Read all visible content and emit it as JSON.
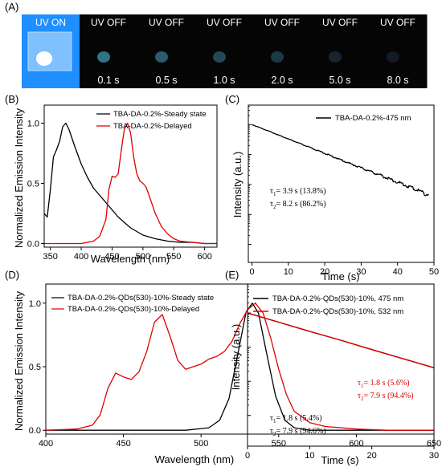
{
  "panel_a": {
    "label": "(A)",
    "frames": [
      {
        "state": "UV ON",
        "time": "",
        "glow": 1.0
      },
      {
        "state": "UV OFF",
        "time": "0.1 s",
        "glow": 0.62
      },
      {
        "state": "UV OFF",
        "time": "0.5 s",
        "glow": 0.48
      },
      {
        "state": "UV OFF",
        "time": "1.0 s",
        "glow": 0.36
      },
      {
        "state": "UV OFF",
        "time": "2.0 s",
        "glow": 0.26
      },
      {
        "state": "UV OFF",
        "time": "5.0 s",
        "glow": 0.14
      },
      {
        "state": "UV OFF",
        "time": "8.0 s",
        "glow": 0.07
      }
    ]
  },
  "chart_data": [
    {
      "panel": "(B)",
      "type": "line",
      "xlabel": "Wavelength (nm)",
      "ylabel": "Normalized Emission Intensity",
      "xlim": [
        340,
        620
      ],
      "ylim": [
        -0.03,
        1.15
      ],
      "xticks": [
        350,
        400,
        450,
        500,
        550,
        600
      ],
      "yticks": [
        0.0,
        0.5,
        1.0
      ],
      "legend_position": "top-right",
      "series": [
        {
          "name": "TBA-DA-0.2%-Steady state",
          "color": "#000000",
          "x": [
            340,
            345,
            350,
            355,
            360,
            365,
            370,
            375,
            380,
            390,
            400,
            410,
            420,
            440,
            460,
            480,
            500,
            520,
            540,
            560,
            580,
            600,
            620
          ],
          "y": [
            0.25,
            0.22,
            0.45,
            0.72,
            0.78,
            0.85,
            0.97,
            1.0,
            0.95,
            0.8,
            0.66,
            0.55,
            0.46,
            0.34,
            0.22,
            0.13,
            0.07,
            0.04,
            0.02,
            0.01,
            0.01,
            0.0,
            0.0
          ]
        },
        {
          "name": "TBA-DA-0.2%-Delayed",
          "color": "#e00000",
          "x": [
            340,
            400,
            420,
            430,
            440,
            445,
            450,
            455,
            460,
            465,
            470,
            475,
            480,
            485,
            490,
            495,
            500,
            505,
            510,
            520,
            530,
            540,
            550,
            560,
            580,
            600,
            620
          ],
          "y": [
            0.0,
            0.0,
            0.02,
            0.06,
            0.2,
            0.45,
            0.56,
            0.55,
            0.58,
            0.78,
            0.95,
            1.0,
            0.92,
            0.72,
            0.58,
            0.52,
            0.5,
            0.47,
            0.4,
            0.25,
            0.14,
            0.08,
            0.04,
            0.02,
            0.01,
            0.0,
            0.0
          ]
        }
      ]
    },
    {
      "panel": "(C)",
      "type": "line",
      "xlabel": "Time (s)",
      "ylabel": "Intensity (a.u.)",
      "xlim": [
        -1,
        50
      ],
      "log_y": true,
      "xticks": [
        0,
        10,
        20,
        30,
        40,
        50
      ],
      "legend_position": "top-right",
      "series": [
        {
          "name": "TBA-DA-0.2%-475 nm",
          "color": "#000000",
          "x": [
            0,
            5,
            10,
            15,
            20,
            25,
            30,
            35,
            40,
            45,
            48.5
          ],
          "y": [
            1.0,
            0.58,
            0.33,
            0.19,
            0.11,
            0.062,
            0.036,
            0.021,
            0.012,
            0.0069,
            0.0045
          ]
        }
      ],
      "annotations": [
        {
          "sym": "τ",
          "sub": "1",
          "text": "= 3.9 s (13.8%)",
          "color": "#000000"
        },
        {
          "sym": "τ",
          "sub": "2",
          "text": "= 8.2 s (86.2%)",
          "color": "#000000"
        }
      ]
    },
    {
      "panel": "(D)",
      "type": "line",
      "xlabel": "Wavelength (nm)",
      "ylabel": "Normalized Emission Intensity",
      "xlim": [
        400,
        650
      ],
      "ylim": [
        -0.03,
        1.15
      ],
      "xticks": [
        400,
        450,
        500,
        550,
        600,
        650
      ],
      "yticks": [
        0.0,
        0.5,
        1.0
      ],
      "legend_position": "top-right",
      "series": [
        {
          "name": "TBA-DA-0.2%-QDs(530)-10%-Steady state",
          "color": "#000000",
          "x": [
            400,
            490,
            505,
            512,
            518,
            524,
            529,
            533,
            537,
            542,
            548,
            554,
            560,
            570,
            590,
            650
          ],
          "y": [
            0.0,
            0.0,
            0.02,
            0.08,
            0.25,
            0.62,
            0.93,
            1.0,
            0.92,
            0.62,
            0.27,
            0.08,
            0.02,
            0.0,
            0.0,
            0.0
          ]
        },
        {
          "name": "TBA-DA-0.2%-QDs(530)-10%-Delayed",
          "color": "#e00000",
          "x": [
            400,
            420,
            430,
            435,
            440,
            445,
            450,
            455,
            460,
            465,
            470,
            475,
            480,
            485,
            490,
            495,
            500,
            505,
            510,
            515,
            520,
            525,
            530,
            535,
            540,
            545,
            550,
            555,
            560,
            570,
            580,
            600,
            620,
            650
          ],
          "y": [
            0.0,
            0.01,
            0.04,
            0.12,
            0.33,
            0.45,
            0.42,
            0.4,
            0.46,
            0.62,
            0.85,
            0.91,
            0.74,
            0.55,
            0.48,
            0.5,
            0.52,
            0.56,
            0.58,
            0.62,
            0.7,
            0.84,
            0.95,
            1.0,
            0.92,
            0.72,
            0.48,
            0.28,
            0.15,
            0.06,
            0.03,
            0.01,
            0.0,
            0.0
          ]
        }
      ]
    },
    {
      "panel": "(E)",
      "type": "line",
      "xlabel": "Time (s)",
      "ylabel": "Intensity (a.u.)",
      "xlim": [
        0,
        30
      ],
      "log_y": true,
      "xticks": [
        0,
        10,
        20,
        30
      ],
      "legend_position": "top-right",
      "series": [
        {
          "name": "TBA-DA-0.2%-QDs(530)-10%, 475 nm",
          "color": "#000000",
          "x": [
            0,
            5,
            10,
            15,
            20,
            25,
            30
          ],
          "y": [
            1.0,
            0.54,
            0.29,
            0.16,
            0.085,
            0.046,
            0.025
          ]
        },
        {
          "name": "TBA-DA-0.2%-QDs(530)-10%, 532 nm",
          "color": "#e00000",
          "x": [
            0,
            5,
            10,
            15,
            20,
            25,
            30
          ],
          "y": [
            1.0,
            0.54,
            0.29,
            0.16,
            0.085,
            0.046,
            0.025
          ]
        }
      ],
      "annotations": [
        {
          "sym": "τ",
          "sub": "1",
          "text": "= 1.8 s (5.6%)",
          "color": "#e00000"
        },
        {
          "sym": "τ",
          "sub": "2",
          "text": "= 7.9 s (94.4%)",
          "color": "#e00000"
        },
        {
          "sym": "τ",
          "sub": "1",
          "text": "= 1.8 s (5.4%)",
          "color": "#000000"
        },
        {
          "sym": "τ",
          "sub": "2",
          "text": "= 7.9 s (94.6%)",
          "color": "#000000"
        }
      ]
    }
  ]
}
